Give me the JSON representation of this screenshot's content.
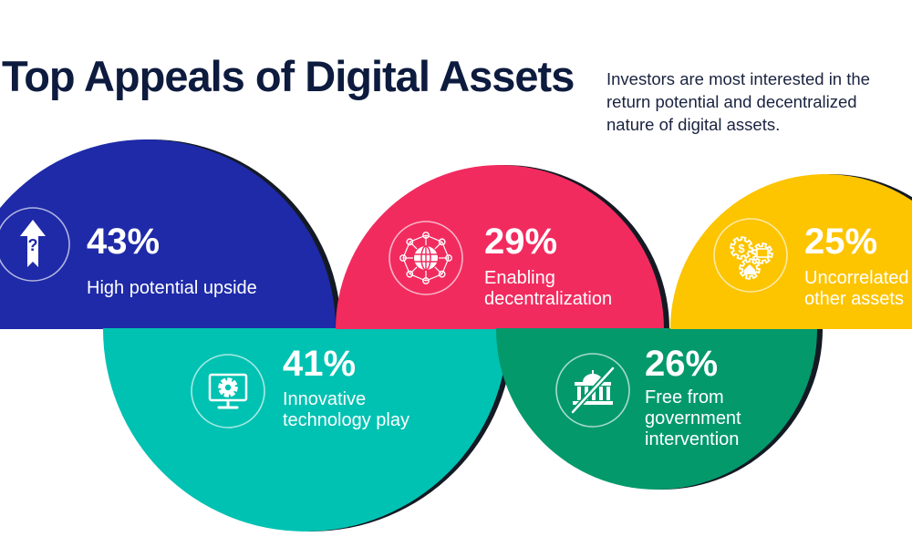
{
  "header": {
    "title": "Top Appeals of Digital Assets",
    "subtitle": "Investors are most interested in the return potential and decentralized nature of digital assets."
  },
  "chart_data": {
    "type": "bubble",
    "categories": [
      "High potential upside",
      "Innovative technology play",
      "Enabling decentralization",
      "Free from government intervention",
      "Uncorrelated to other assets"
    ],
    "values": [
      43,
      41,
      29,
      26,
      25
    ],
    "value_labels": [
      "43%",
      "41%",
      "29%",
      "26%",
      "25%"
    ],
    "label_lines": [
      [
        "High potential upside"
      ],
      [
        "Innovative",
        "technology play"
      ],
      [
        "Enabling",
        "decentralization"
      ],
      [
        "Free from",
        "government",
        "intervention"
      ],
      [
        "Uncorrelated to",
        "other assets"
      ]
    ],
    "icons": [
      "upside-arrow-icon",
      "gear-monitor-icon",
      "network-globe-icon",
      "crossed-capitol-icon",
      "money-gears-icon"
    ],
    "colors": [
      "#1e2aa8",
      "#00c2b2",
      "#f22b5f",
      "#03996b",
      "#fdc400"
    ]
  }
}
